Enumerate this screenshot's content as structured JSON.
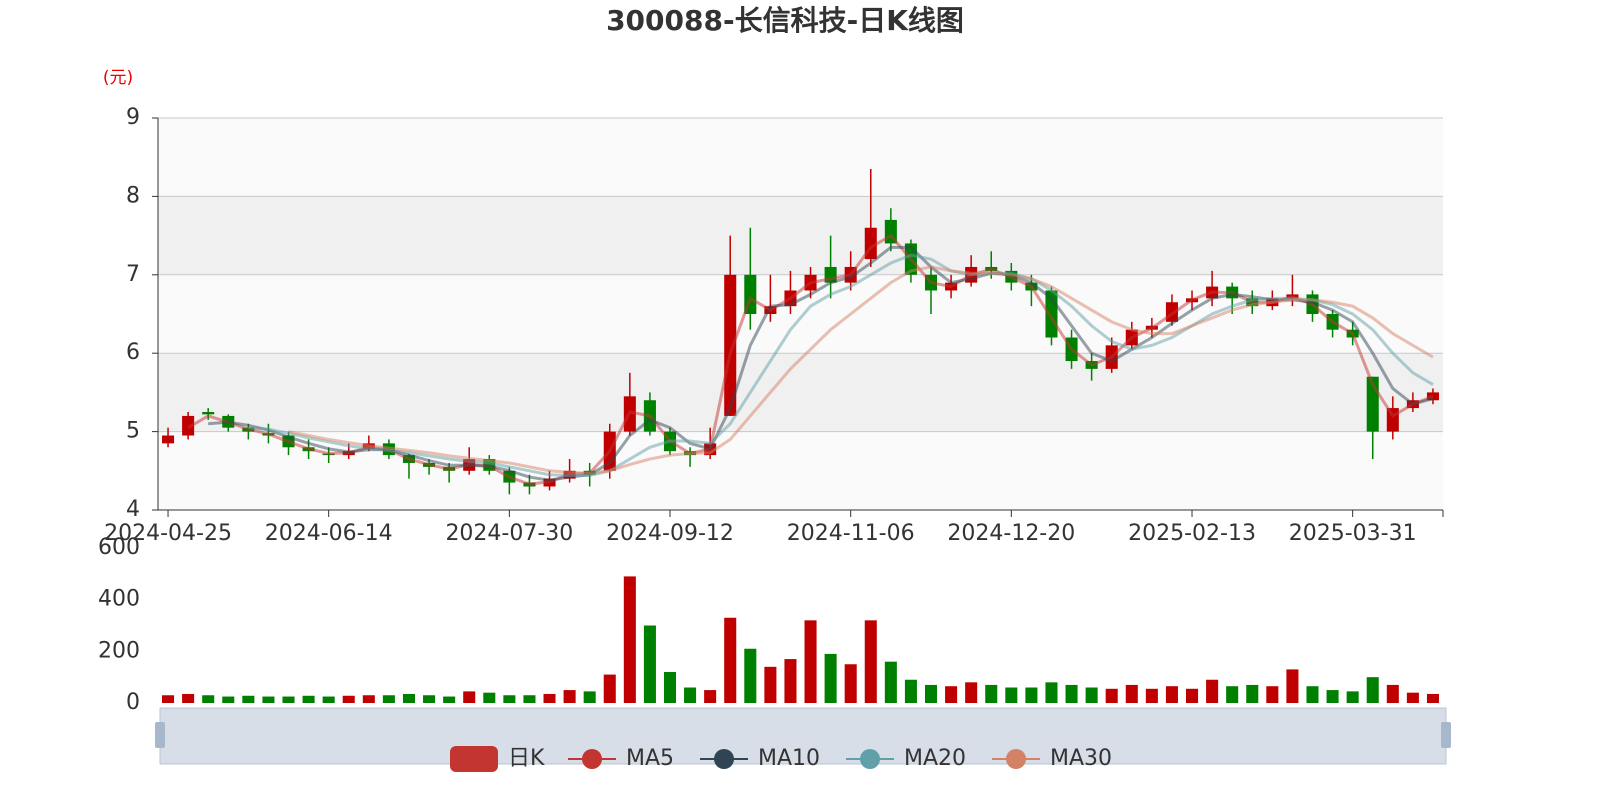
{
  "chart_data": {
    "type": "candlestick",
    "title": "300088-长信科技-日K线图",
    "y_unit": "(元)",
    "categories": [
      "2024-04-25",
      null,
      null,
      null,
      null,
      null,
      null,
      null,
      "2024-06-14",
      null,
      null,
      null,
      null,
      null,
      null,
      null,
      null,
      "2024-07-30",
      null,
      null,
      null,
      null,
      null,
      null,
      null,
      "2024-09-12",
      null,
      null,
      null,
      null,
      null,
      null,
      null,
      null,
      "2024-11-06",
      null,
      null,
      null,
      null,
      null,
      null,
      null,
      "2024-12-20",
      null,
      null,
      null,
      null,
      null,
      null,
      null,
      null,
      "2025-02-13",
      null,
      null,
      null,
      null,
      null,
      null,
      null,
      "2025-03-31",
      null,
      null,
      null,
      null
    ],
    "ylim": [
      4,
      9
    ],
    "yticks": [
      4,
      5,
      6,
      7,
      8,
      9
    ],
    "grid": true,
    "up_color": "#c00000",
    "down_color": "#008000",
    "series": [
      {
        "name": "日K",
        "color": "#c23531",
        "values": [
          [
            4.85,
            4.95,
            4.8,
            5.05
          ],
          [
            4.95,
            5.2,
            4.9,
            5.25
          ],
          [
            5.25,
            5.22,
            5.15,
            5.3
          ],
          [
            5.2,
            5.05,
            5.0,
            5.22
          ],
          [
            5.05,
            5.0,
            4.9,
            5.1
          ],
          [
            4.98,
            4.95,
            4.85,
            5.1
          ],
          [
            4.95,
            4.8,
            4.7,
            5.0
          ],
          [
            4.8,
            4.75,
            4.65,
            4.9
          ],
          [
            4.72,
            4.7,
            4.6,
            4.8
          ],
          [
            4.7,
            4.75,
            4.65,
            4.85
          ],
          [
            4.78,
            4.85,
            4.75,
            4.95
          ],
          [
            4.85,
            4.7,
            4.65,
            4.9
          ],
          [
            4.7,
            4.6,
            4.4,
            4.72
          ],
          [
            4.6,
            4.55,
            4.45,
            4.65
          ],
          [
            4.55,
            4.5,
            4.35,
            4.6
          ],
          [
            4.5,
            4.65,
            4.45,
            4.8
          ],
          [
            4.65,
            4.5,
            4.45,
            4.7
          ],
          [
            4.5,
            4.35,
            4.2,
            4.55
          ],
          [
            4.35,
            4.3,
            4.2,
            4.45
          ],
          [
            4.3,
            4.4,
            4.25,
            4.5
          ],
          [
            4.4,
            4.5,
            4.35,
            4.65
          ],
          [
            4.5,
            4.45,
            4.3,
            4.6
          ],
          [
            4.5,
            5.0,
            4.4,
            5.1
          ],
          [
            5.0,
            5.45,
            4.95,
            5.75
          ],
          [
            5.4,
            5.0,
            4.95,
            5.5
          ],
          [
            5.0,
            4.75,
            4.7,
            5.05
          ],
          [
            4.75,
            4.7,
            4.55,
            4.8
          ],
          [
            4.7,
            4.85,
            4.65,
            5.05
          ],
          [
            5.2,
            7.0,
            5.2,
            7.5
          ],
          [
            7.0,
            6.5,
            6.3,
            7.6
          ],
          [
            6.5,
            6.6,
            6.4,
            7.0
          ],
          [
            6.6,
            6.8,
            6.5,
            7.05
          ],
          [
            6.8,
            7.0,
            6.7,
            7.1
          ],
          [
            7.1,
            6.9,
            6.7,
            7.5
          ],
          [
            6.9,
            7.1,
            6.8,
            7.3
          ],
          [
            7.2,
            7.6,
            7.1,
            8.35
          ],
          [
            7.7,
            7.4,
            7.3,
            7.85
          ],
          [
            7.4,
            7.0,
            6.9,
            7.45
          ],
          [
            7.0,
            6.8,
            6.5,
            7.1
          ],
          [
            6.8,
            6.9,
            6.7,
            7.0
          ],
          [
            6.9,
            7.1,
            6.85,
            7.25
          ],
          [
            7.1,
            7.05,
            6.95,
            7.3
          ],
          [
            7.05,
            6.9,
            6.8,
            7.15
          ],
          [
            6.9,
            6.8,
            6.6,
            7.0
          ],
          [
            6.8,
            6.2,
            6.1,
            6.85
          ],
          [
            6.2,
            5.9,
            5.8,
            6.3
          ],
          [
            5.9,
            5.8,
            5.65,
            6.0
          ],
          [
            5.8,
            6.1,
            5.75,
            6.2
          ],
          [
            6.1,
            6.3,
            6.05,
            6.4
          ],
          [
            6.3,
            6.35,
            6.2,
            6.45
          ],
          [
            6.4,
            6.65,
            6.35,
            6.75
          ],
          [
            6.65,
            6.7,
            6.55,
            6.8
          ],
          [
            6.7,
            6.85,
            6.6,
            7.05
          ],
          [
            6.85,
            6.7,
            6.5,
            6.9
          ],
          [
            6.7,
            6.6,
            6.5,
            6.8
          ],
          [
            6.6,
            6.7,
            6.55,
            6.8
          ],
          [
            6.7,
            6.75,
            6.6,
            7.0
          ],
          [
            6.75,
            6.5,
            6.4,
            6.8
          ],
          [
            6.5,
            6.3,
            6.2,
            6.55
          ],
          [
            6.3,
            6.2,
            6.1,
            6.4
          ],
          [
            5.7,
            5.0,
            4.65,
            5.7
          ],
          [
            5.0,
            5.3,
            4.9,
            5.45
          ],
          [
            5.3,
            5.4,
            5.25,
            5.5
          ],
          [
            5.4,
            5.5,
            5.35,
            5.55
          ]
        ]
      },
      {
        "name": "MA5",
        "color": "#c23531",
        "values": [
          null,
          5.05,
          5.2,
          5.12,
          5.03,
          4.97,
          4.87,
          4.78,
          4.72,
          4.73,
          4.8,
          4.77,
          4.65,
          4.58,
          4.52,
          4.58,
          4.56,
          4.42,
          4.33,
          4.36,
          4.46,
          4.47,
          4.75,
          5.25,
          5.2,
          4.88,
          4.72,
          4.78,
          6.0,
          6.7,
          6.55,
          6.7,
          6.9,
          6.95,
          7.0,
          7.35,
          7.5,
          7.2,
          6.9,
          6.85,
          7.0,
          7.07,
          6.97,
          6.85,
          6.45,
          6.05,
          5.85,
          5.95,
          6.2,
          6.32,
          6.5,
          6.68,
          6.78,
          6.77,
          6.65,
          6.65,
          6.72,
          6.62,
          6.4,
          6.25,
          5.6,
          5.2,
          5.35,
          5.45
        ]
      },
      {
        "name": "MA10",
        "color": "#2f4554",
        "values": [
          null,
          null,
          5.1,
          5.12,
          5.08,
          5.02,
          4.93,
          4.85,
          4.78,
          4.74,
          4.77,
          4.77,
          4.7,
          4.63,
          4.57,
          4.57,
          4.56,
          4.5,
          4.42,
          4.38,
          4.42,
          4.45,
          4.6,
          4.95,
          5.15,
          5.05,
          4.85,
          4.78,
          5.3,
          6.1,
          6.6,
          6.62,
          6.75,
          6.9,
          6.97,
          7.15,
          7.35,
          7.35,
          7.1,
          6.9,
          6.95,
          7.02,
          7.0,
          6.9,
          6.7,
          6.35,
          6.0,
          5.9,
          6.05,
          6.2,
          6.38,
          6.55,
          6.7,
          6.75,
          6.72,
          6.68,
          6.68,
          6.65,
          6.55,
          6.4,
          6.0,
          5.55,
          5.35,
          5.42
        ]
      },
      {
        "name": "MA20",
        "color": "#61a0a8",
        "values": [
          null,
          null,
          null,
          null,
          5.05,
          5.03,
          4.98,
          4.92,
          4.87,
          4.82,
          4.78,
          4.76,
          4.73,
          4.69,
          4.65,
          4.62,
          4.6,
          4.55,
          4.5,
          4.45,
          4.44,
          4.44,
          4.5,
          4.65,
          4.8,
          4.88,
          4.88,
          4.85,
          5.1,
          5.5,
          5.9,
          6.3,
          6.6,
          6.75,
          6.85,
          7.0,
          7.15,
          7.25,
          7.2,
          7.05,
          7.0,
          7.02,
          7.02,
          6.95,
          6.8,
          6.6,
          6.35,
          6.15,
          6.05,
          6.1,
          6.2,
          6.35,
          6.5,
          6.6,
          6.68,
          6.7,
          6.7,
          6.68,
          6.62,
          6.5,
          6.3,
          6.0,
          5.75,
          5.6
        ]
      },
      {
        "name": "MA30",
        "color": "#d48265",
        "values": [
          null,
          null,
          null,
          null,
          null,
          null,
          5.0,
          4.95,
          4.9,
          4.86,
          4.82,
          4.79,
          4.76,
          4.73,
          4.69,
          4.66,
          4.63,
          4.6,
          4.55,
          4.5,
          4.48,
          4.47,
          4.5,
          4.58,
          4.65,
          4.7,
          4.72,
          4.73,
          4.9,
          5.2,
          5.5,
          5.8,
          6.05,
          6.3,
          6.5,
          6.7,
          6.9,
          7.05,
          7.1,
          7.05,
          7.02,
          7.02,
          7.0,
          6.95,
          6.85,
          6.7,
          6.55,
          6.4,
          6.3,
          6.25,
          6.25,
          6.35,
          6.45,
          6.55,
          6.62,
          6.65,
          6.68,
          6.68,
          6.65,
          6.6,
          6.45,
          6.25,
          6.1,
          5.95
        ]
      }
    ],
    "volume": {
      "ylim": [
        0,
        600
      ],
      "yticks": [
        0,
        200,
        400,
        600
      ],
      "values": [
        30,
        35,
        30,
        25,
        28,
        25,
        25,
        28,
        25,
        28,
        30,
        30,
        35,
        30,
        25,
        45,
        40,
        30,
        30,
        35,
        50,
        45,
        110,
        490,
        300,
        120,
        60,
        50,
        330,
        210,
        140,
        170,
        320,
        190,
        150,
        320,
        160,
        90,
        70,
        65,
        80,
        70,
        60,
        60,
        80,
        70,
        60,
        55,
        70,
        55,
        65,
        55,
        90,
        65,
        70,
        65,
        130,
        65,
        50,
        45,
        100,
        70,
        40,
        35
      ]
    }
  }
}
